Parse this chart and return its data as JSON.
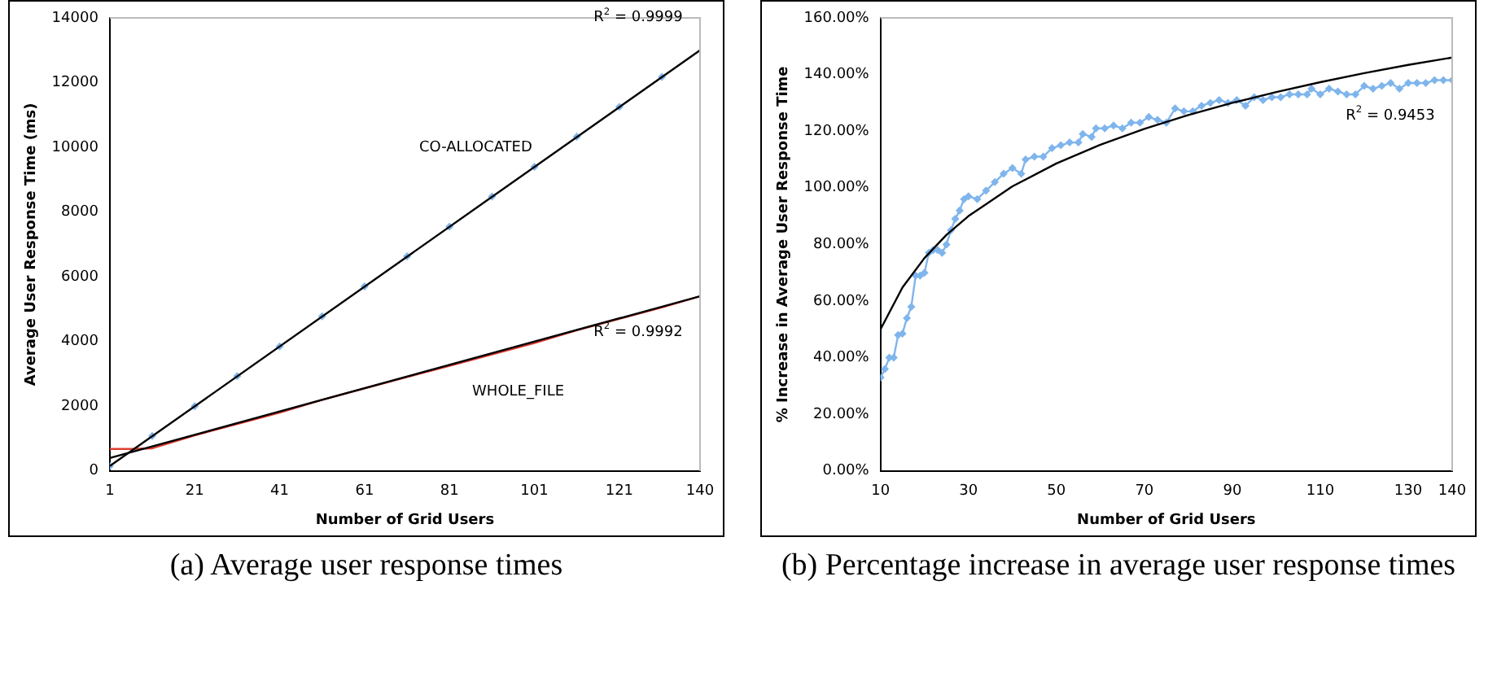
{
  "chart_data": [
    {
      "type": "line",
      "title": "(a) Average user response times",
      "xlabel": "Number of Grid Users",
      "ylabel": "Average User Response Time (ms)",
      "xlim": [
        1,
        140
      ],
      "xticks": [
        1,
        21,
        41,
        61,
        81,
        101,
        121,
        140
      ],
      "ylim": [
        0,
        14000
      ],
      "yticks": [
        0,
        2000,
        4000,
        6000,
        8000,
        10000,
        12000,
        14000
      ],
      "grid": false,
      "legend": false,
      "series": [
        {
          "name": "CO-ALLOCATED",
          "type": "scatter",
          "marker": "diamond",
          "color": "#7fb5ec",
          "x": [
            1,
            11,
            21,
            31,
            41,
            51,
            61,
            71,
            81,
            91,
            101,
            111,
            121,
            131
          ],
          "values": [
            150,
            1080,
            2000,
            2930,
            3850,
            4780,
            5700,
            6630,
            7550,
            8480,
            9400,
            10330,
            11250,
            12180
          ]
        },
        {
          "name": "WHOLE_FILE",
          "marker": "none",
          "color": "#e03c31",
          "x": [
            1,
            6,
            11,
            21,
            31,
            41,
            51,
            61,
            71,
            81,
            91,
            101,
            111,
            121,
            131,
            140
          ],
          "values": [
            680,
            680,
            700,
            1100,
            1450,
            1800,
            2200,
            2550,
            2900,
            3250,
            3600,
            3950,
            4350,
            4700,
            5050,
            5400
          ]
        },
        {
          "marker": "none",
          "color": "#000000",
          "x": [
            1,
            140
          ],
          "values": [
            150,
            13000
          ]
        },
        {
          "marker": "none",
          "color": "#000000",
          "x": [
            1,
            140
          ],
          "values": [
            400,
            5400
          ]
        }
      ],
      "annotations": [
        "R$^{2}$ = 0.9999",
        "R$^{2}$ = 0.9992"
      ]
    },
    {
      "type": "line",
      "title": "(b) Percentage increase in average user response times",
      "xlabel": "Number of Grid Users",
      "ylabel": "% Increase in Average User Response Time",
      "xlim": [
        10,
        140
      ],
      "xticks": [
        10,
        30,
        50,
        70,
        90,
        110,
        130,
        140
      ],
      "ylim": [
        0,
        160
      ],
      "yticks": [
        {
          "value": 0,
          "label": "0.00%"
        },
        {
          "value": 20,
          "label": "20.00%"
        },
        {
          "value": 40,
          "label": "40.00%"
        },
        {
          "value": 60,
          "label": "60.00%"
        },
        {
          "value": 80,
          "label": "80.00%"
        },
        {
          "value": 100,
          "label": "100.00%"
        },
        {
          "value": 120,
          "label": "120.00%"
        },
        {
          "value": 140,
          "label": "140.00%"
        },
        {
          "value": 160,
          "label": "160.00%"
        }
      ],
      "grid": false,
      "legend": false,
      "series": [
        {
          "marker": "diamond",
          "color": "#7fb5ec",
          "x": [
            10,
            11,
            12,
            13,
            14,
            15,
            16,
            17,
            18,
            19,
            20,
            21,
            22,
            23,
            24,
            25,
            26,
            27,
            28,
            29,
            30,
            32,
            34,
            36,
            38,
            40,
            42,
            43,
            45,
            47,
            49,
            51,
            53,
            55,
            56,
            58,
            59,
            61,
            63,
            65,
            67,
            69,
            71,
            73,
            75,
            77,
            79,
            81,
            83,
            85,
            87,
            89,
            91,
            93,
            95,
            97,
            99,
            101,
            103,
            105,
            107,
            108,
            110,
            112,
            114,
            116,
            118,
            120,
            122,
            124,
            126,
            128,
            130,
            132,
            134,
            136,
            138,
            140
          ],
          "values": [
            33,
            36,
            40,
            40,
            48,
            48.5,
            54,
            58,
            69,
            69,
            70,
            77,
            78,
            78,
            77,
            80,
            85,
            89,
            92,
            96,
            97,
            96,
            99,
            102,
            105,
            107,
            105,
            110,
            111,
            111,
            114,
            115,
            116,
            116,
            119,
            118,
            121,
            121,
            122,
            121,
            123,
            123,
            125,
            124,
            123,
            128,
            127,
            127,
            129,
            130,
            131,
            130,
            131,
            129,
            132,
            131,
            132,
            132,
            133,
            133,
            133,
            135,
            133,
            135,
            134,
            133,
            133,
            136,
            135,
            136,
            137,
            135,
            137,
            137,
            137,
            138,
            138,
            138
          ]
        },
        {
          "marker": "none",
          "color": "#000000",
          "x": [
            10,
            15,
            20,
            25,
            30,
            40,
            50,
            60,
            70,
            80,
            90,
            100,
            110,
            120,
            130,
            140
          ],
          "values": [
            50,
            64.8,
            75.2,
            83.4,
            90,
            100.5,
            108.6,
            115.2,
            120.8,
            125.7,
            130,
            133.8,
            137.3,
            140.5,
            143.4,
            146
          ]
        }
      ],
      "annotations": [
        "R$^{2}$ = 0.9453"
      ]
    }
  ]
}
